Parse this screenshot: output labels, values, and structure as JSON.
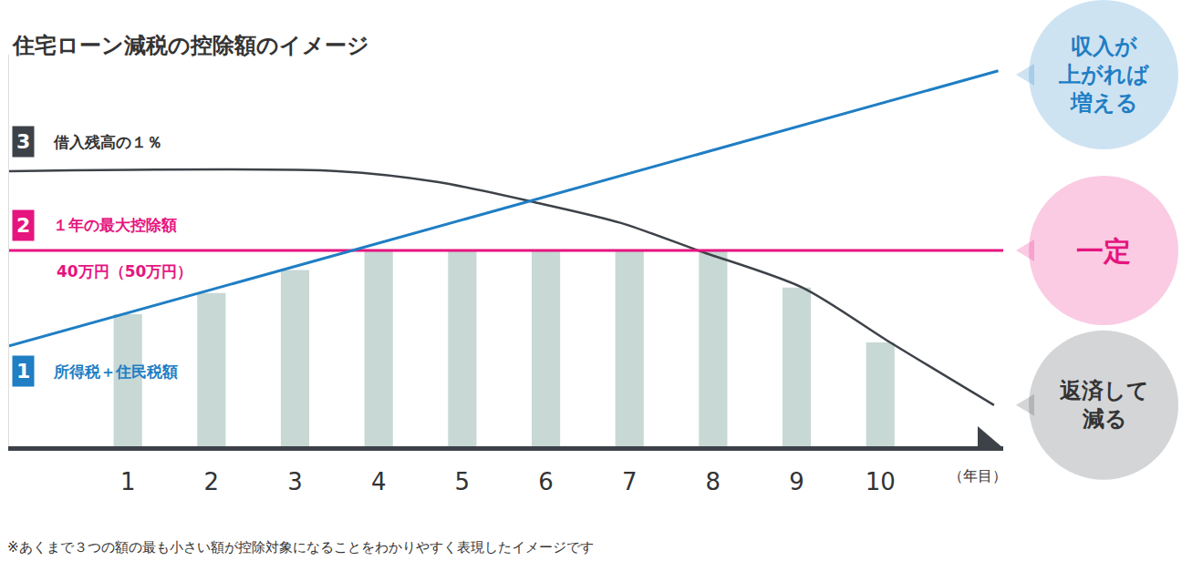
{
  "chart_data": {
    "type": "bar",
    "title": "住宅ローン減税の控除額のイメージ",
    "xlabel": "（年目）",
    "xlim": [
      -0.42,
      11.47
    ],
    "xticks": [
      1,
      2,
      3,
      4,
      5,
      6,
      7,
      8,
      9,
      10
    ],
    "ylim": [
      0,
      80
    ],
    "yticks": [],
    "tick_labels": "x",
    "grid": false,
    "series": [
      {
        "type": "bar",
        "color": "#c7d8d5",
        "x": [
          1,
          2,
          3,
          4,
          5,
          6,
          7,
          8,
          9,
          10
        ],
        "values": [
          27,
          31.3,
          36,
          40,
          40,
          40,
          40,
          40,
          32.4,
          21.2
        ]
      },
      {
        "type": "line",
        "name": "借入残高の１％",
        "badge": "3",
        "color": "#3d4249",
        "note": [
          "返済して",
          "減る"
        ],
        "x": [
          -0.42,
          3.51,
          4.7,
          5.85,
          6.9,
          7.82,
          9.07,
          10.1,
          11.36
        ],
        "values": [
          56.2,
          56.2,
          54,
          49.9,
          45.6,
          40,
          32.4,
          21.4,
          8.4
        ]
      },
      {
        "type": "line",
        "name": "１年の最大控除額",
        "badge": "2",
        "color": "#e6147f",
        "sublabel": "40万円（50万円）",
        "note": [
          "一定"
        ],
        "x": [
          -0.42,
          11.47
        ],
        "values": [
          40,
          40
        ]
      },
      {
        "type": "line",
        "name": "所得税＋住民税額",
        "badge": "1",
        "color": "#1f7ec4",
        "note": [
          "収入が",
          "上がれば",
          "増える"
        ],
        "x": [
          -0.42,
          11.41
        ],
        "values": [
          20.5,
          76.7
        ]
      }
    ],
    "footnote": "※あくまで３つの額の最も小さい額が控除対象になることをわかりやすく表現したイメージです"
  }
}
